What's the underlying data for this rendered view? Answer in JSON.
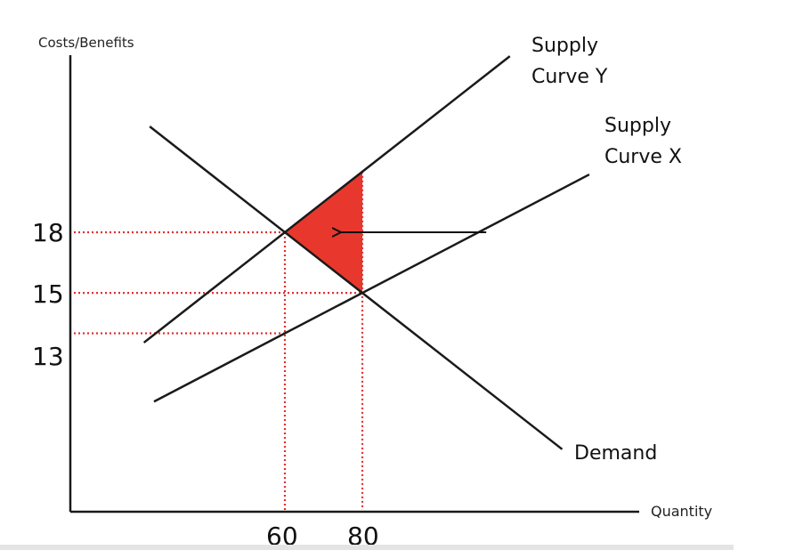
{
  "chart_data": {
    "type": "line",
    "xlabel": "Quantity",
    "ylabel": "Costs/Benefits",
    "x_ticks": [
      60,
      80
    ],
    "y_ticks": [
      13,
      15,
      18
    ],
    "series": [
      {
        "name": "Supply Curve Y",
        "x": [
          60,
          80
        ],
        "y": [
          18,
          21
        ]
      },
      {
        "name": "Supply Curve X",
        "x": [
          60,
          80
        ],
        "y": [
          13,
          15
        ]
      },
      {
        "name": "Demand",
        "x": [
          60,
          80
        ],
        "y": [
          18,
          15
        ]
      }
    ],
    "curve_labels": {
      "supply_y": [
        "Supply",
        "Curve Y"
      ],
      "supply_x": [
        "Supply",
        "Curve X"
      ],
      "demand": "Demand"
    },
    "shaded_region": {
      "vertices": [
        [
          60,
          18
        ],
        [
          80,
          21
        ],
        [
          80,
          15
        ]
      ],
      "color": "#e8382e"
    },
    "arrow": {
      "points_to": [
        60,
        18
      ],
      "color": "#111111"
    },
    "guide_line_color": "#e03030",
    "curve_color": "#1a1a1a",
    "grid": false,
    "legend": "none"
  }
}
